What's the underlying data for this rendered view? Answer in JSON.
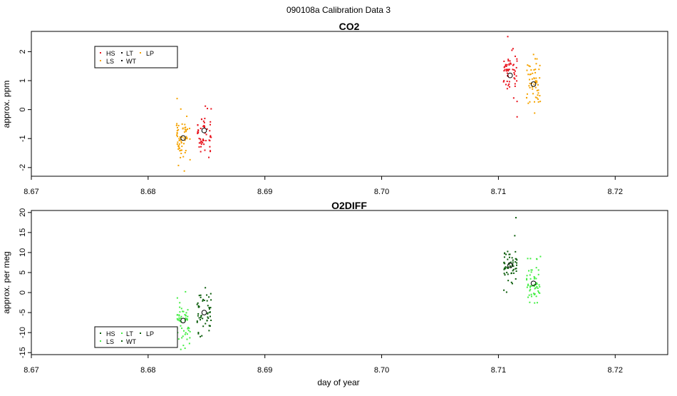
{
  "page_title": "090108a   Calibration Data 3",
  "x_axis_label": "day of year",
  "chart_data": [
    {
      "type": "scatter",
      "title": "CO2",
      "ylabel": "approx. ppm",
      "xlim": [
        8.67,
        8.7245
      ],
      "ylim": [
        -2.3,
        2.7
      ],
      "x_ticks": [
        8.67,
        8.68,
        8.69,
        8.7,
        8.71,
        8.72
      ],
      "x_tick_labels": [
        "8.67",
        "8.68",
        "8.69",
        "8.70",
        "8.71",
        "8.72"
      ],
      "y_ticks": [
        -2,
        -1,
        0,
        1,
        2
      ],
      "y_tick_labels": [
        "-2",
        "-1",
        "0",
        "1",
        "2"
      ],
      "legend": {
        "location": "top-left",
        "entries": [
          {
            "label": "HS",
            "color": "#e8121c"
          },
          {
            "label": "LT",
            "color": "#111111"
          },
          {
            "label": "LP",
            "color": "#f5a300"
          },
          {
            "label": "LS",
            "color": "#f5a300"
          },
          {
            "label": "WT",
            "color": "#111111"
          }
        ]
      },
      "clusters": [
        {
          "name": "LS",
          "color": "#f5a300",
          "x_center": 8.683,
          "x_spread": 0.0006,
          "y_mean": -0.97,
          "y_spread": 0.38,
          "n": 60,
          "seed": 11,
          "outliers": [
            [
              8.6831,
              -2.12
            ],
            [
              8.6828,
              0.02
            ]
          ]
        },
        {
          "name": "HS",
          "color": "#e8121c",
          "x_center": 8.6848,
          "x_spread": 0.0006,
          "y_mean": -0.72,
          "y_spread": 0.33,
          "n": 50,
          "seed": 23,
          "outliers": [
            [
              8.6849,
              0.12
            ],
            [
              8.6852,
              -1.65
            ]
          ]
        },
        {
          "name": "HS",
          "color": "#e8121c",
          "x_center": 8.711,
          "x_spread": 0.0006,
          "y_mean": 1.18,
          "y_spread": 0.38,
          "n": 55,
          "seed": 37,
          "outliers": [
            [
              8.7108,
              2.52
            ],
            [
              8.7116,
              -0.25
            ]
          ]
        },
        {
          "name": "LS",
          "color": "#f5a300",
          "x_center": 8.713,
          "x_spread": 0.0006,
          "y_mean": 0.88,
          "y_spread": 0.4,
          "n": 55,
          "seed": 41,
          "outliers": [
            [
              8.7133,
              1.75
            ],
            [
              8.7131,
              -0.12
            ]
          ]
        }
      ],
      "means": [
        {
          "x": 8.683,
          "y": -0.98
        },
        {
          "x": 8.6848,
          "y": -0.72
        },
        {
          "x": 8.711,
          "y": 1.18
        },
        {
          "x": 8.713,
          "y": 0.88
        }
      ]
    },
    {
      "type": "scatter",
      "title": "O2DIFF",
      "ylabel": "approx. per meg",
      "xlim": [
        8.67,
        8.7245
      ],
      "ylim": [
        -15.5,
        20.5
      ],
      "x_ticks": [
        8.67,
        8.68,
        8.69,
        8.7,
        8.71,
        8.72
      ],
      "x_tick_labels": [
        "8.67",
        "8.68",
        "8.69",
        "8.70",
        "8.71",
        "8.72"
      ],
      "y_ticks": [
        -15,
        -10,
        -5,
        0,
        5,
        10,
        15,
        20
      ],
      "y_tick_labels": [
        "-15",
        "-10",
        "-5",
        "0",
        "5",
        "10",
        "15",
        "20"
      ],
      "legend": {
        "location": "bottom-left",
        "entries": [
          {
            "label": "HS",
            "color": "#0a5c0a"
          },
          {
            "label": "LT",
            "color": "#44ee44"
          },
          {
            "label": "LP",
            "color": "#0a5c0a"
          },
          {
            "label": "LS",
            "color": "#44ee44"
          },
          {
            "label": "WT",
            "color": "#0a5c0a"
          }
        ]
      },
      "clusters": [
        {
          "name": "LS",
          "color": "#44ee44",
          "x_center": 8.683,
          "x_spread": 0.0006,
          "y_mean": -7.0,
          "y_spread": 2.6,
          "n": 55,
          "seed": 53,
          "outliers": [
            [
              8.6828,
              -14.2
            ],
            [
              8.6832,
              0.2
            ]
          ]
        },
        {
          "name": "HS",
          "color": "#0a5c0a",
          "x_center": 8.6848,
          "x_spread": 0.0006,
          "y_mean": -5.0,
          "y_spread": 2.6,
          "n": 50,
          "seed": 67,
          "outliers": [
            [
              8.6849,
              1.2
            ],
            [
              8.6846,
              -10.8
            ]
          ]
        },
        {
          "name": "HS",
          "color": "#0a5c0a",
          "x_center": 8.711,
          "x_spread": 0.0006,
          "y_mean": 6.8,
          "y_spread": 2.4,
          "n": 55,
          "seed": 71,
          "outliers": [
            [
              8.7115,
              18.7
            ],
            [
              8.7114,
              14.2
            ],
            [
              8.7107,
              0.1
            ]
          ]
        },
        {
          "name": "LS",
          "color": "#44ee44",
          "x_center": 8.713,
          "x_spread": 0.0006,
          "y_mean": 2.3,
          "y_spread": 2.5,
          "n": 55,
          "seed": 83,
          "outliers": [
            [
              8.7136,
              9.0
            ],
            [
              8.7131,
              -2.6
            ]
          ]
        }
      ],
      "means": [
        {
          "x": 8.683,
          "y": -7.0
        },
        {
          "x": 8.6848,
          "y": -5.0
        },
        {
          "x": 8.711,
          "y": 6.8
        },
        {
          "x": 8.713,
          "y": 2.3
        }
      ]
    }
  ]
}
